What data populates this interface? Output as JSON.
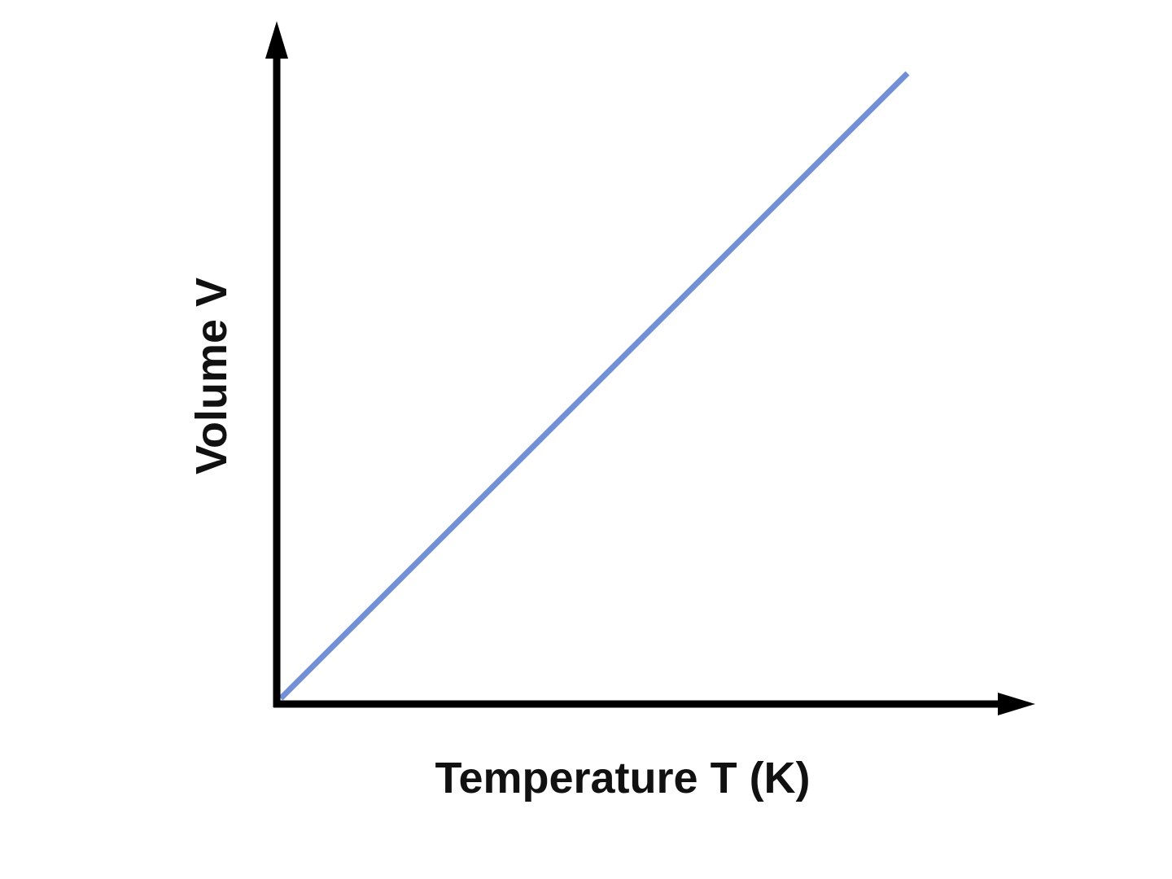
{
  "x_axis_label": "Temperature T (K)",
  "y_axis_label": "Volume V",
  "line_color": "#7190d6"
}
